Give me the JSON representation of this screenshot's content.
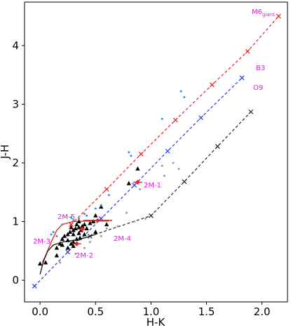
{
  "chart_data": {
    "type": "scatter",
    "xlabel": "H-K",
    "ylabel": "J-H",
    "xlim": [
      -0.14,
      2.23
    ],
    "ylim": [
      -0.37,
      4.74
    ],
    "xticks": [
      {
        "value": 0,
        "label": "0.0"
      },
      0.5,
      {
        "value": 1,
        "label": "1.0"
      },
      1.5,
      {
        "value": 2,
        "label": "2.0"
      }
    ],
    "yticks": [
      0,
      1,
      2,
      3,
      4
    ],
    "grid": false,
    "series": [
      {
        "style": "dashed-line",
        "marker": "x",
        "color": "#e8221c",
        "x": [
          0.28,
          0.6,
          0.91,
          1.22,
          1.55,
          1.87,
          2.15
        ],
        "values": [
          0.95,
          1.55,
          2.15,
          2.73,
          3.33,
          3.9,
          4.5
        ]
      },
      {
        "style": "dashed-line",
        "marker": "x",
        "color": "#1f3fd0",
        "x": [
          -0.05,
          0.25,
          0.55,
          0.85,
          1.15,
          1.45,
          1.82
        ],
        "values": [
          -0.1,
          0.48,
          1.05,
          1.62,
          2.2,
          2.77,
          3.45
        ]
      },
      {
        "style": "dashed-line",
        "marker": "x",
        "color": "#222222",
        "x": [
          0.45,
          1.0,
          1.3,
          1.6,
          1.9
        ],
        "values": [
          0.75,
          1.1,
          1.68,
          2.28,
          2.87
        ]
      },
      {
        "style": "solid-line",
        "color": "#e8221c",
        "x": [
          0.02,
          0.05,
          0.1,
          0.15,
          0.2,
          0.3,
          0.45,
          0.62
        ],
        "values": [
          0.3,
          0.42,
          0.65,
          0.85,
          0.95,
          1.0,
          1.01,
          1.01
        ]
      },
      {
        "style": "solid-line",
        "color": "#111111",
        "x": [
          0.0,
          0.03,
          0.07,
          0.12,
          0.2,
          0.3,
          0.4,
          0.5
        ],
        "values": [
          0.1,
          0.32,
          0.5,
          0.6,
          0.65,
          0.68,
          0.72,
          0.78
        ]
      },
      {
        "style": "triangles",
        "color": "#000000",
        "x": [
          0.0,
          0.05,
          0.15,
          0.2,
          0.22,
          0.25,
          0.27,
          0.28,
          0.3,
          0.3,
          0.32,
          0.33,
          0.35,
          0.35,
          0.37,
          0.38,
          0.4,
          0.42,
          0.45,
          0.48,
          0.5,
          0.55,
          0.25,
          0.28,
          0.3,
          0.33,
          0.36,
          0.4,
          0.2,
          0.18,
          0.35,
          0.8,
          0.88,
          0.5,
          0.6,
          0.15,
          0.25,
          0.3
        ],
        "values": [
          0.28,
          0.3,
          0.42,
          0.6,
          0.75,
          0.78,
          0.82,
          0.9,
          0.85,
          0.78,
          0.88,
          0.95,
          0.8,
          0.9,
          0.85,
          0.92,
          0.95,
          0.88,
          0.97,
          1.0,
          1.1,
          1.25,
          0.55,
          0.62,
          0.65,
          0.7,
          0.72,
          0.78,
          0.7,
          0.62,
          1.0,
          1.65,
          1.9,
          0.82,
          0.95,
          0.55,
          0.68,
          0.58
        ]
      },
      {
        "style": "dots",
        "color": "#9a9a9a",
        "x": [
          1.1,
          1.2,
          1.12,
          0.9,
          0.95,
          0.85,
          0.7,
          0.55,
          0.4,
          1.25,
          0.6,
          0.45,
          0.32,
          0.18,
          0.78
        ],
        "values": [
          1.95,
          2.0,
          1.78,
          1.55,
          1.05,
          1.0,
          0.92,
          0.75,
          0.55,
          1.9,
          0.88,
          0.65,
          0.45,
          0.3,
          1.15
        ]
      },
      {
        "style": "dots",
        "color": "#3a8fd6",
        "x": [
          1.27,
          1.3,
          1.1,
          0.82,
          0.8,
          0.62,
          0.55,
          0.5,
          0.42,
          0.4,
          0.3,
          0.28,
          0.12,
          0.1,
          0.15,
          0.2,
          0.35
        ],
        "values": [
          3.22,
          3.12,
          2.75,
          2.12,
          2.18,
          1.45,
          1.28,
          1.22,
          1.1,
          1.13,
          1.02,
          1.07,
          0.82,
          0.78,
          0.75,
          0.95,
          1.05
        ]
      },
      {
        "style": "errorbars",
        "color": "#e8221c",
        "x": [
          0.88,
          0.52,
          0.33,
          0.38
        ],
        "values": [
          1.67,
          1.02,
          0.62,
          0.87
        ],
        "xerr": [
          0.04,
          0.13,
          0.04,
          0.03
        ],
        "yerr": [
          0.04,
          0.02,
          0.04,
          0.04
        ]
      }
    ],
    "annotations": [
      "2M-1",
      "2M-2",
      "2M-3",
      "2M-4",
      "2M-5",
      "B3",
      "O9"
    ],
    "giant_label": {
      "text": "M6",
      "sub": "giant"
    }
  }
}
